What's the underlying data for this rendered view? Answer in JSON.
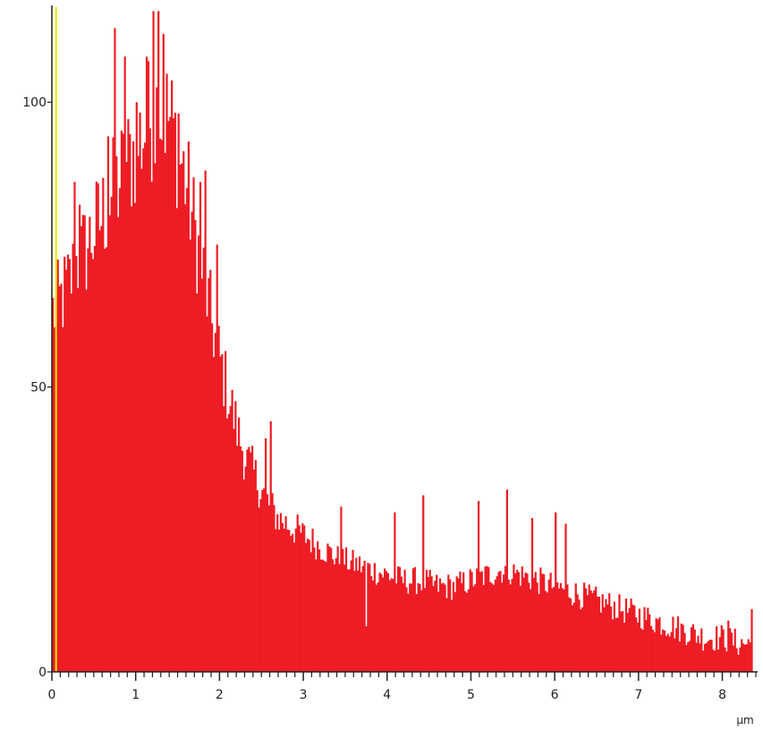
{
  "chart_data": {
    "type": "bar",
    "title": "",
    "xlabel": "µm",
    "ylabel": "",
    "xlim": [
      0,
      8.4
    ],
    "ylim": [
      0,
      117
    ],
    "xticks": [
      0,
      1,
      2,
      3,
      4,
      5,
      6,
      7,
      8
    ],
    "xtick_labels": [
      "0",
      "1",
      "2",
      "3",
      "4",
      "5",
      "6",
      "7",
      "8"
    ],
    "xminor_step": 0.1,
    "yticks": [
      0,
      50,
      100
    ],
    "ytick_labels": [
      "0",
      "50",
      "100"
    ],
    "grid": false,
    "legend": "none",
    "bin_width": 0.02,
    "bar_color": "#ee1d25",
    "marker_line": {
      "x": 0.05,
      "color": "#e8e800"
    },
    "anchors_x": [
      0.0,
      0.1,
      0.2,
      0.3,
      0.4,
      0.5,
      0.6,
      0.7,
      0.8,
      0.9,
      1.0,
      1.1,
      1.2,
      1.3,
      1.4,
      1.5,
      1.6,
      1.7,
      1.8,
      1.9,
      2.0,
      2.1,
      2.2,
      2.3,
      2.4,
      2.5,
      2.6,
      2.7,
      2.8,
      2.9,
      3.0,
      3.2,
      3.4,
      3.6,
      3.8,
      4.0,
      4.2,
      4.4,
      4.6,
      4.8,
      5.0,
      5.2,
      5.4,
      5.6,
      5.8,
      6.0,
      6.2,
      6.4,
      6.6,
      6.8,
      7.0,
      7.2,
      7.4,
      7.6,
      7.8,
      8.0,
      8.2,
      8.36
    ],
    "anchors_y": [
      63,
      65,
      68,
      72,
      74,
      77,
      80,
      83,
      86,
      89,
      92,
      95,
      98,
      99,
      97,
      92,
      86,
      78,
      70,
      62,
      55,
      49,
      43,
      38,
      35,
      32,
      29,
      27,
      26,
      25,
      24,
      22,
      20,
      19,
      18,
      17,
      16,
      16,
      15,
      15,
      16,
      17,
      18,
      17,
      16,
      15,
      14,
      13,
      12,
      11,
      10,
      9,
      8,
      7,
      6,
      6,
      5,
      5
    ],
    "noise_amplitude": 5,
    "spikes": [
      {
        "x": 0.26,
        "y": 86
      },
      {
        "x": 0.32,
        "y": 82
      },
      {
        "x": 0.66,
        "y": 94
      },
      {
        "x": 0.74,
        "y": 113
      },
      {
        "x": 0.86,
        "y": 108
      },
      {
        "x": 1.0,
        "y": 100
      },
      {
        "x": 1.14,
        "y": 108
      },
      {
        "x": 1.2,
        "y": 116
      },
      {
        "x": 1.26,
        "y": 116
      },
      {
        "x": 1.32,
        "y": 112
      },
      {
        "x": 1.5,
        "y": 98
      },
      {
        "x": 1.76,
        "y": 86
      },
      {
        "x": 1.82,
        "y": 88
      },
      {
        "x": 1.96,
        "y": 75
      },
      {
        "x": 2.54,
        "y": 41
      },
      {
        "x": 2.6,
        "y": 44
      },
      {
        "x": 3.44,
        "y": 29
      },
      {
        "x": 3.74,
        "y": 8
      },
      {
        "x": 4.1,
        "y": 28
      },
      {
        "x": 4.42,
        "y": 31
      },
      {
        "x": 5.1,
        "y": 30
      },
      {
        "x": 5.42,
        "y": 32
      },
      {
        "x": 5.72,
        "y": 27
      },
      {
        "x": 6.0,
        "y": 28
      },
      {
        "x": 6.12,
        "y": 26
      },
      {
        "x": 8.06,
        "y": 9
      },
      {
        "x": 8.34,
        "y": 11
      }
    ]
  }
}
